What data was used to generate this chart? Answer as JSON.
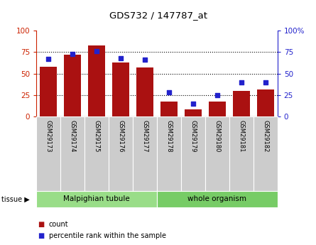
{
  "title": "GDS732 / 147787_at",
  "samples": [
    "GSM29173",
    "GSM29174",
    "GSM29175",
    "GSM29176",
    "GSM29177",
    "GSM29178",
    "GSM29179",
    "GSM29180",
    "GSM29181",
    "GSM29182"
  ],
  "counts": [
    58,
    72,
    83,
    63,
    57,
    17,
    8,
    17,
    30,
    31
  ],
  "percentiles": [
    67,
    73,
    76,
    68,
    66,
    28,
    15,
    25,
    40,
    40
  ],
  "bar_color": "#aa1111",
  "dot_color": "#2222cc",
  "tissue_groups": [
    {
      "label": "Malpighian tubule",
      "start": 0,
      "end": 5,
      "color": "#99dd88"
    },
    {
      "label": "whole organism",
      "start": 5,
      "end": 10,
      "color": "#77cc66"
    }
  ],
  "ylim": [
    0,
    100
  ],
  "yticks": [
    0,
    25,
    50,
    75,
    100
  ],
  "left_axis_color": "#cc2200",
  "right_axis_color": "#2222cc",
  "tick_label_bg": "#cccccc",
  "legend_count_label": "count",
  "legend_pct_label": "percentile rank within the sample",
  "tissue_label": "tissue"
}
